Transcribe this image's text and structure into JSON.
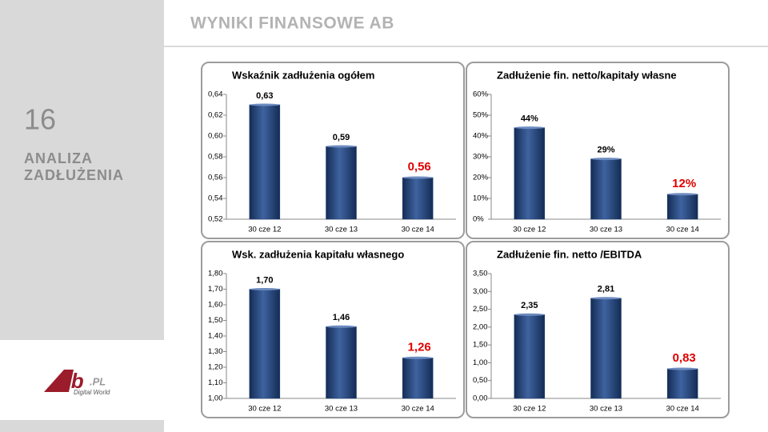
{
  "header": {
    "title": "WYNIKI FINANSOWE AB"
  },
  "sidebar": {
    "number": "16",
    "section": [
      "ANALIZA",
      "ZADŁUŻENIA"
    ]
  },
  "logo": {
    "brand": "Ab",
    "suffix": ".PL",
    "tagline": "Digital World"
  },
  "chart_data": [
    {
      "type": "bar",
      "title": "Wskaźnik zadłużenia ogółem",
      "categories": [
        "30 cze 12",
        "30 cze 13",
        "30 cze 14"
      ],
      "values": [
        0.63,
        0.59,
        0.56
      ],
      "value_labels": [
        "0,63",
        "0,59",
        "0,56"
      ],
      "label_colors": [
        "#000000",
        "#000000",
        "#e00000"
      ],
      "color": "#1f3f73",
      "ylim": [
        0.52,
        0.64
      ],
      "yticks": [
        {
          "value": 0.52,
          "label": "0,52"
        },
        {
          "value": 0.54,
          "label": "0,54"
        },
        {
          "value": 0.56,
          "label": "0,56"
        },
        {
          "value": 0.58,
          "label": "0,58"
        },
        {
          "value": 0.6,
          "label": "0,60"
        },
        {
          "value": 0.62,
          "label": "0,62"
        },
        {
          "value": 0.64,
          "label": "0,64"
        }
      ],
      "grid": false
    },
    {
      "type": "bar",
      "title": "Zadłużenie fin. netto/kapitały własne",
      "categories": [
        "30 cze 12",
        "30 cze 13",
        "30 cze 14"
      ],
      "values": [
        44,
        29,
        12
      ],
      "value_labels": [
        "44%",
        "29%",
        "12%"
      ],
      "label_colors": [
        "#000000",
        "#000000",
        "#e00000"
      ],
      "color": "#1f3f73",
      "ylim": [
        0,
        60
      ],
      "yticks": [
        {
          "value": 0,
          "label": "0%"
        },
        {
          "value": 10,
          "label": "10%"
        },
        {
          "value": 20,
          "label": "20%"
        },
        {
          "value": 30,
          "label": "30%"
        },
        {
          "value": 40,
          "label": "40%"
        },
        {
          "value": 50,
          "label": "50%"
        },
        {
          "value": 60,
          "label": "60%"
        }
      ],
      "grid": false
    },
    {
      "type": "bar",
      "title": "Wsk. zadłużenia kapitału własnego",
      "categories": [
        "30 cze 12",
        "30 cze 13",
        "30 cze 14"
      ],
      "values": [
        1.7,
        1.46,
        1.26
      ],
      "value_labels": [
        "1,70",
        "1,46",
        "1,26"
      ],
      "label_colors": [
        "#000000",
        "#000000",
        "#e00000"
      ],
      "color": "#1f3f73",
      "ylim": [
        1.0,
        1.8
      ],
      "yticks": [
        {
          "value": 1.0,
          "label": "1,00"
        },
        {
          "value": 1.1,
          "label": "1,10"
        },
        {
          "value": 1.2,
          "label": "1,20"
        },
        {
          "value": 1.3,
          "label": "1,30"
        },
        {
          "value": 1.4,
          "label": "1,40"
        },
        {
          "value": 1.5,
          "label": "1,50"
        },
        {
          "value": 1.6,
          "label": "1,60"
        },
        {
          "value": 1.7,
          "label": "1,70"
        },
        {
          "value": 1.8,
          "label": "1,80"
        }
      ],
      "grid": false
    },
    {
      "type": "bar",
      "title": "Zadłużenie fin. netto /EBITDA",
      "categories": [
        "30 cze 12",
        "30 cze 13",
        "30 cze 14"
      ],
      "values": [
        2.35,
        2.81,
        0.83
      ],
      "value_labels": [
        "2,35",
        "2,81",
        "0,83"
      ],
      "label_colors": [
        "#000000",
        "#000000",
        "#e00000"
      ],
      "color": "#1f3f73",
      "ylim": [
        0,
        3.5
      ],
      "yticks": [
        {
          "value": 0,
          "label": "0,00"
        },
        {
          "value": 0.5,
          "label": "0,50"
        },
        {
          "value": 1.0,
          "label": "1,00"
        },
        {
          "value": 1.5,
          "label": "1,50"
        },
        {
          "value": 2.0,
          "label": "2,00"
        },
        {
          "value": 2.5,
          "label": "2,50"
        },
        {
          "value": 3.0,
          "label": "3,00"
        },
        {
          "value": 3.5,
          "label": "3,50"
        }
      ],
      "grid": false
    }
  ]
}
